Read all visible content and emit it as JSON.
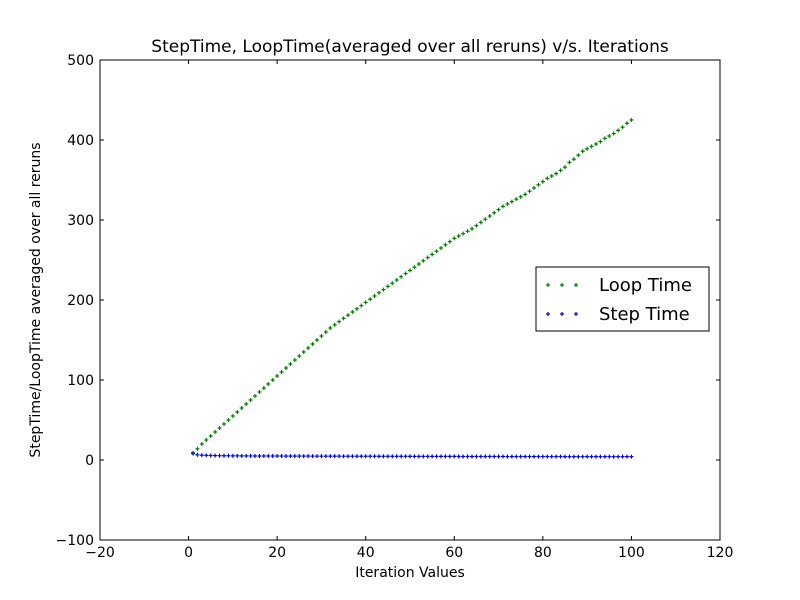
{
  "chart_data": {
    "type": "scatter",
    "title": "StepTime, LoopTime(averaged over all reruns) v/s. Iterations",
    "xlabel": "Iteration Values",
    "ylabel": "StepTime/LoopTime averaged over all reruns",
    "xlim": [
      -20,
      120
    ],
    "ylim": [
      -100,
      500
    ],
    "xticks": [
      -20,
      0,
      20,
      40,
      60,
      80,
      100,
      120
    ],
    "yticks": [
      -100,
      0,
      100,
      200,
      300,
      400,
      500
    ],
    "xtick_labels": [
      "−20",
      "0",
      "20",
      "40",
      "60",
      "80",
      "100",
      "120"
    ],
    "ytick_labels": [
      "−100",
      "0",
      "100",
      "200",
      "300",
      "400",
      "500"
    ],
    "grid": false,
    "legend_position": "center-right",
    "series": [
      {
        "name": "Loop Time",
        "color": "#008000",
        "marker": "plus",
        "x": [
          1,
          2,
          3,
          4,
          5,
          6,
          7,
          8,
          9,
          10,
          11,
          12,
          13,
          14,
          15,
          16,
          17,
          18,
          19,
          20,
          21,
          22,
          23,
          24,
          25,
          26,
          27,
          28,
          29,
          30,
          31,
          32,
          33,
          34,
          35,
          36,
          37,
          38,
          39,
          40,
          41,
          42,
          43,
          44,
          45,
          46,
          47,
          48,
          49,
          50,
          51,
          52,
          53,
          54,
          55,
          56,
          57,
          58,
          59,
          60,
          61,
          62,
          63,
          64,
          65,
          66,
          67,
          68,
          69,
          70,
          71,
          72,
          73,
          74,
          75,
          76,
          77,
          78,
          79,
          80,
          81,
          82,
          83,
          84,
          85,
          86,
          87,
          88,
          89,
          90,
          91,
          92,
          93,
          94,
          95,
          96,
          97,
          98,
          99,
          100
        ],
        "values": [
          9,
          14,
          20,
          25,
          30,
          35,
          40,
          45,
          50,
          55,
          60,
          65,
          70,
          75,
          80,
          85,
          90,
          95,
          100,
          105,
          110,
          115,
          120,
          125,
          130,
          135,
          140,
          145,
          150,
          155,
          160,
          165,
          169,
          173,
          177,
          181,
          185,
          189,
          193,
          197,
          201,
          205,
          209,
          213,
          217,
          221,
          225,
          229,
          233,
          237,
          241,
          245,
          249,
          253,
          257,
          261,
          265,
          269,
          273,
          277,
          280,
          283,
          286,
          289,
          293,
          297,
          301,
          305,
          309,
          313,
          317,
          320,
          323,
          326,
          329,
          332,
          336,
          340,
          344,
          348,
          352,
          355,
          358,
          362,
          366,
          372,
          376,
          381,
          386,
          389,
          392,
          395,
          398,
          402,
          405,
          408,
          412,
          416,
          421,
          425
        ]
      },
      {
        "name": "Step Time",
        "color": "#0000ff",
        "marker": "plus",
        "x": [
          1,
          2,
          3,
          4,
          5,
          6,
          7,
          8,
          9,
          10,
          11,
          12,
          13,
          14,
          15,
          16,
          17,
          18,
          19,
          20,
          21,
          22,
          23,
          24,
          25,
          26,
          27,
          28,
          29,
          30,
          31,
          32,
          33,
          34,
          35,
          36,
          37,
          38,
          39,
          40,
          41,
          42,
          43,
          44,
          45,
          46,
          47,
          48,
          49,
          50,
          51,
          52,
          53,
          54,
          55,
          56,
          57,
          58,
          59,
          60,
          61,
          62,
          63,
          64,
          65,
          66,
          67,
          68,
          69,
          70,
          71,
          72,
          73,
          74,
          75,
          76,
          77,
          78,
          79,
          80,
          81,
          82,
          83,
          84,
          85,
          86,
          87,
          88,
          89,
          90,
          91,
          92,
          93,
          94,
          95,
          96,
          97,
          98,
          99,
          100
        ],
        "values": [
          8,
          6.5,
          6,
          5.8,
          5.6,
          5.5,
          5.4,
          5.3,
          5.3,
          5.2,
          5.2,
          5.1,
          5.1,
          5.1,
          5,
          5,
          5,
          5,
          5,
          5,
          5,
          4.9,
          4.9,
          4.9,
          4.9,
          4.9,
          4.9,
          4.8,
          4.8,
          4.8,
          4.8,
          4.8,
          4.8,
          4.8,
          4.7,
          4.7,
          4.7,
          4.7,
          4.7,
          4.7,
          4.7,
          4.7,
          4.6,
          4.6,
          4.6,
          4.6,
          4.6,
          4.6,
          4.6,
          4.6,
          4.5,
          4.5,
          4.5,
          4.5,
          4.5,
          4.5,
          4.5,
          4.5,
          4.5,
          4.5,
          4.4,
          4.4,
          4.4,
          4.4,
          4.4,
          4.4,
          4.4,
          4.4,
          4.4,
          4.4,
          4.4,
          4.3,
          4.3,
          4.3,
          4.3,
          4.3,
          4.3,
          4.3,
          4.3,
          4.3,
          4.3,
          4.3,
          4.3,
          4.3,
          4.2,
          4.2,
          4.2,
          4.2,
          4.2,
          4.2,
          4.2,
          4.2,
          4.2,
          4.2,
          4.2,
          4.2,
          4.2,
          4.2,
          4.2,
          4.2
        ]
      }
    ]
  }
}
